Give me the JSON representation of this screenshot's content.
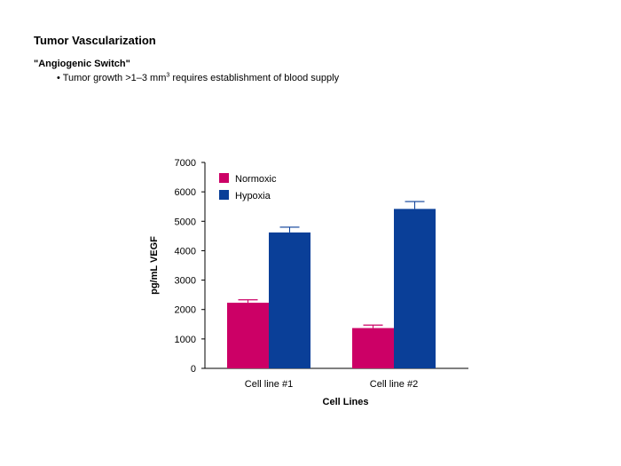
{
  "slide": {
    "title": "Tumor Vascularization",
    "section_heading": "\"Angiogenic Switch\"",
    "bullet": {
      "marker": "•",
      "text_before": "Tumor growth >1–3 mm",
      "superscript": "3",
      "text_after": " requires establishment of blood supply"
    }
  },
  "chart_data": {
    "type": "bar",
    "title": "",
    "xlabel": "Cell Lines",
    "ylabel": "pg/mL VEGF",
    "categories": [
      "Cell line #1",
      "Cell line #2"
    ],
    "series": [
      {
        "name": "Normoxic",
        "color": "#cc0066",
        "values": [
          2230,
          1370
        ],
        "errors": [
          100,
          100
        ]
      },
      {
        "name": "Hypoxia",
        "color": "#0a3f98",
        "values": [
          4620,
          5420
        ],
        "errors": [
          180,
          250
        ]
      }
    ],
    "ylim": [
      0,
      7000
    ],
    "yticks": [
      0,
      1000,
      2000,
      3000,
      4000,
      5000,
      6000,
      7000
    ],
    "grid": false,
    "legend_position": "top-left",
    "error_bars": "upper"
  }
}
